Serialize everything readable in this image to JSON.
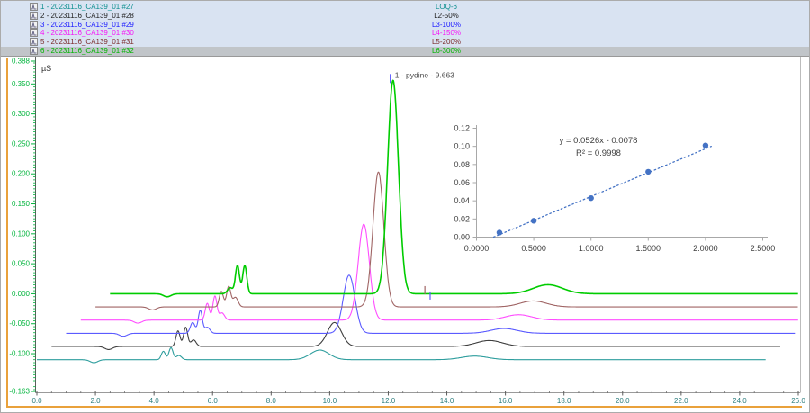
{
  "legend": {
    "bg_color": "#d9e3f2",
    "highlight_color": "#c1c5c9",
    "selected_row_index": 5,
    "rows": [
      {
        "left": "1 - 20231116_CA139_01 #27",
        "right": "LOQ-6",
        "color": "#0d8f8f"
      },
      {
        "left": "2 - 20231116_CA139_01 #28",
        "right": "L2-50%",
        "color": "#222222"
      },
      {
        "left": "3 - 20231116_CA139_01 #29",
        "right": "L3-100%",
        "color": "#1a1aff"
      },
      {
        "left": "4 - 20231116_CA139_01 #30",
        "right": "L4-150%",
        "color": "#f516f5"
      },
      {
        "left": "5 - 20231116_CA139_01 #31",
        "right": "L5-200%",
        "color": "#7d2e2e"
      },
      {
        "left": "6 - 20231116_CA139_01 #32",
        "right": "L6-300%",
        "color": "#00b400"
      }
    ]
  },
  "chart_data": [
    {
      "type": "line",
      "title": "Overlaid conductivity chromatograms (stacked offset view)",
      "signal_unit": "µS",
      "x_axis": {
        "min": 0.0,
        "max": 26.0,
        "minor_step": 0.5,
        "color": "#2c7d7d",
        "labels": [
          {
            "v": 0.0,
            "label": "0.0"
          },
          {
            "v": 2.0,
            "label": "2.0"
          },
          {
            "v": 4.0,
            "label": "4.0"
          },
          {
            "v": 6.0,
            "label": "6.0"
          },
          {
            "v": 8.0,
            "label": "8.0"
          },
          {
            "v": 10.0,
            "label": "10.0"
          },
          {
            "v": 12.0,
            "label": "12.0"
          },
          {
            "v": 14.0,
            "label": "14.0"
          },
          {
            "v": 16.0,
            "label": "16.0"
          },
          {
            "v": 18.0,
            "label": "18.0"
          },
          {
            "v": 20.0,
            "label": "20.0"
          },
          {
            "v": 22.0,
            "label": "22.0"
          },
          {
            "v": 24.0,
            "label": "24.0"
          },
          {
            "v": 26.0,
            "label": "26.0"
          }
        ]
      },
      "y_axis": {
        "min": -0.163,
        "max": 0.388,
        "minor_step": 0.005,
        "major_step": 0.05,
        "color": "#00b43c",
        "labels": [
          {
            "v": 0.388,
            "label": "0.388"
          },
          {
            "v": 0.35,
            "label": "0.350"
          },
          {
            "v": 0.3,
            "label": "0.300"
          },
          {
            "v": 0.25,
            "label": "0.250"
          },
          {
            "v": 0.2,
            "label": "0.200"
          },
          {
            "v": 0.15,
            "label": "0.150"
          },
          {
            "v": 0.1,
            "label": "0.100"
          },
          {
            "v": 0.05,
            "label": "0.050"
          },
          {
            "v": 0.0,
            "label": "0.000"
          },
          {
            "v": -0.05,
            "label": "-0.050"
          },
          {
            "v": -0.1,
            "label": "-0.100"
          },
          {
            "v": -0.163,
            "label": "-0.163"
          }
        ]
      },
      "peak_annotation": {
        "text": "1 - pydine - 9.663",
        "rt": 9.663,
        "display_t": 12.163,
        "apex_value": 0.356,
        "color": "#4a4a4a",
        "tick_color": "#4646ff"
      },
      "peak_markers": [
        {
          "t": 13.25,
          "v": 0.006,
          "color": "#a06565"
        },
        {
          "t": 13.43,
          "v": -0.003,
          "color": "#5b5bff"
        }
      ],
      "series": [
        {
          "name": "LOQ-6",
          "sample": "1 - 20231116_CA139_01 #27",
          "color": "#2f9e9e",
          "selected": false,
          "t_offset": 0.0,
          "baseline": -0.11,
          "run_end": 24.9,
          "peaks": [
            {
              "rt": 4.32,
              "h": 0.014,
              "sigma": 0.07
            },
            {
              "rt": 4.58,
              "h": 0.02,
              "sigma": 0.07
            },
            {
              "rt": 4.85,
              "h": 0.007,
              "sigma": 0.09
            },
            {
              "rt": 9.663,
              "h": 0.016,
              "sigma": 0.32
            },
            {
              "rt": 14.95,
              "h": 0.006,
              "sigma": 0.45
            }
          ],
          "dip": {
            "rt": 1.95,
            "depth": 0.005,
            "sigma": 0.13
          }
        },
        {
          "name": "L2-50%",
          "sample": "2 - 20231116_CA139_01 #28",
          "color": "#3f3f3f",
          "selected": false,
          "t_offset": 0.5,
          "baseline": -0.088,
          "run_end": 24.9,
          "peaks": [
            {
              "rt": 4.32,
              "h": 0.026,
              "sigma": 0.07
            },
            {
              "rt": 4.58,
              "h": 0.032,
              "sigma": 0.07
            },
            {
              "rt": 4.85,
              "h": 0.011,
              "sigma": 0.09
            },
            {
              "rt": 9.663,
              "h": 0.04,
              "sigma": 0.24
            },
            {
              "rt": 14.95,
              "h": 0.01,
              "sigma": 0.45
            }
          ],
          "dip": {
            "rt": 1.95,
            "depth": 0.005,
            "sigma": 0.13
          }
        },
        {
          "name": "L3-100%",
          "sample": "3 - 20231116_CA139_01 #29",
          "color": "#5b5bff",
          "selected": false,
          "t_offset": 1.0,
          "baseline": -0.066,
          "run_end": 24.9,
          "peaks": [
            {
              "rt": 4.32,
              "h": 0.018,
              "sigma": 0.08
            },
            {
              "rt": 4.58,
              "h": 0.038,
              "sigma": 0.07
            },
            {
              "rt": 4.82,
              "h": 0.01,
              "sigma": 0.09
            },
            {
              "rt": 9.663,
              "h": 0.097,
              "sigma": 0.2
            },
            {
              "rt": 14.95,
              "h": 0.008,
              "sigma": 0.45
            }
          ],
          "dip": {
            "rt": 1.95,
            "depth": 0.005,
            "sigma": 0.13
          }
        },
        {
          "name": "L4-150%",
          "sample": "4 - 20231116_CA139_01 #30",
          "color": "#ff4dff",
          "selected": false,
          "t_offset": 1.5,
          "baseline": -0.044,
          "run_end": 24.9,
          "peaks": [
            {
              "rt": 4.32,
              "h": 0.028,
              "sigma": 0.07
            },
            {
              "rt": 4.58,
              "h": 0.04,
              "sigma": 0.07
            },
            {
              "rt": 4.82,
              "h": 0.012,
              "sigma": 0.09
            },
            {
              "rt": 9.663,
              "h": 0.16,
              "sigma": 0.19
            },
            {
              "rt": 14.95,
              "h": 0.009,
              "sigma": 0.45
            }
          ],
          "dip": {
            "rt": 1.95,
            "depth": 0.005,
            "sigma": 0.13
          }
        },
        {
          "name": "L5-200%",
          "sample": "5 - 20231116_CA139_01 #31",
          "color": "#a06565",
          "selected": false,
          "t_offset": 2.0,
          "baseline": -0.022,
          "run_end": 24.9,
          "peaks": [
            {
              "rt": 4.3,
              "h": 0.026,
              "sigma": 0.07
            },
            {
              "rt": 4.55,
              "h": 0.034,
              "sigma": 0.07
            },
            {
              "rt": 4.78,
              "h": 0.016,
              "sigma": 0.09
            },
            {
              "rt": 9.663,
              "h": 0.225,
              "sigma": 0.185
            },
            {
              "rt": 14.95,
              "h": 0.01,
              "sigma": 0.45
            }
          ],
          "dip": {
            "rt": 1.95,
            "depth": 0.005,
            "sigma": 0.13
          }
        },
        {
          "name": "L6-300%",
          "sample": "6 - 20231116_CA139_01 #32",
          "color": "#00cc00",
          "selected": true,
          "t_offset": 2.5,
          "baseline": 0.0,
          "run_end": 24.9,
          "peaks": [
            {
              "rt": 4.1,
              "h": 0.01,
              "sigma": 0.09
            },
            {
              "rt": 4.35,
              "h": 0.047,
              "sigma": 0.07
            },
            {
              "rt": 4.6,
              "h": 0.047,
              "sigma": 0.07
            },
            {
              "rt": 9.663,
              "h": 0.356,
              "sigma": 0.185
            },
            {
              "rt": 14.95,
              "h": 0.015,
              "sigma": 0.5
            }
          ],
          "dip": {
            "rt": 1.95,
            "depth": 0.005,
            "sigma": 0.13
          }
        }
      ]
    },
    {
      "type": "scatter",
      "title": "Calibration curve",
      "x": [
        0.2,
        0.5,
        1.0,
        1.5,
        2.0
      ],
      "y": [
        0.005,
        0.018,
        0.043,
        0.072,
        0.101
      ],
      "equation": "y = 0.0526x - 0.0078",
      "r_squared": "R² = 0.9998",
      "trendline": {
        "slope": 0.0526,
        "intercept": -0.0078,
        "style": "dotted",
        "x_start": 0.15,
        "x_end": 2.05
      },
      "xlim": [
        0.0,
        2.5
      ],
      "ylim": [
        0.0,
        0.12
      ],
      "x_ticks": [
        {
          "v": 0.0,
          "label": "0.0000"
        },
        {
          "v": 0.5,
          "label": "0.5000"
        },
        {
          "v": 1.0,
          "label": "1.0000"
        },
        {
          "v": 1.5,
          "label": "1.5000"
        },
        {
          "v": 2.0,
          "label": "2.0000"
        },
        {
          "v": 2.5,
          "label": "2.5000"
        }
      ],
      "y_ticks": [
        {
          "v": 0.0,
          "label": "0.00"
        },
        {
          "v": 0.02,
          "label": "0.02"
        },
        {
          "v": 0.04,
          "label": "0.04"
        },
        {
          "v": 0.06,
          "label": "0.06"
        },
        {
          "v": 0.08,
          "label": "0.08"
        },
        {
          "v": 0.1,
          "label": "0.10"
        },
        {
          "v": 0.12,
          "label": "0.12"
        }
      ],
      "point_color": "#4472c4",
      "axis_color": "#a8a8a8",
      "text_color": "#3d3d3d",
      "legend_position": "none",
      "grid": false
    }
  ]
}
